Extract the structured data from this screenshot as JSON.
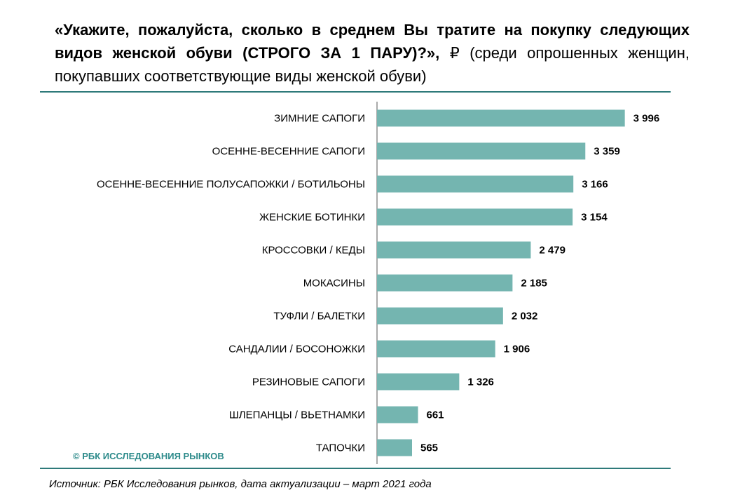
{
  "header": {
    "question": "«Укажите, пожалуйста, сколько в среднем Вы тратите на покупку следующих видов женской обуви (СТРОГО ЗА 1 ПАРУ)?»,",
    "currency": "₽",
    "subtitle": "(среди опрошенных женщин, покупавших соответствующие виды женской обуви)"
  },
  "footer": {
    "copyright": "© РБК ИССЛЕДОВАНИЯ РЫНКОВ",
    "source": "Источник: РБК Исследования рынков, дата актуализации – март 2021 года"
  },
  "colors": {
    "bar": "#74b5b0",
    "rule": "#2e7a7a",
    "copyright": "#2e8b8b",
    "axis": "#555555"
  },
  "chart_data": {
    "type": "bar",
    "orientation": "horizontal",
    "categories": [
      "ЗИМНИЕ САПОГИ",
      "ОСЕННЕ-ВЕСЕННИЕ САПОГИ",
      "ОСЕННЕ-ВЕСЕННИЕ ПОЛУСАПОЖКИ / БОТИЛЬОНЫ",
      "ЖЕНСКИЕ БОТИНКИ",
      "КРОССОВКИ / КЕДЫ",
      "МОКАСИНЫ",
      "ТУФЛИ / БАЛЕТКИ",
      "САНДАЛИИ / БОСОНОЖКИ",
      "РЕЗИНОВЫЕ САПОГИ",
      "ШЛЕПАНЦЫ / ВЬЕТНАМКИ",
      "ТАПОЧКИ"
    ],
    "values": [
      3996,
      3359,
      3166,
      3154,
      2479,
      2185,
      2032,
      1906,
      1326,
      661,
      565
    ],
    "value_labels": [
      "3 996",
      "3 359",
      "3 166",
      "3 154",
      "2 479",
      "2 185",
      "2 032",
      "1 906",
      "1 326",
      "661",
      "565"
    ],
    "xlim": [
      0,
      4000
    ],
    "grid": false,
    "legend": "none"
  }
}
